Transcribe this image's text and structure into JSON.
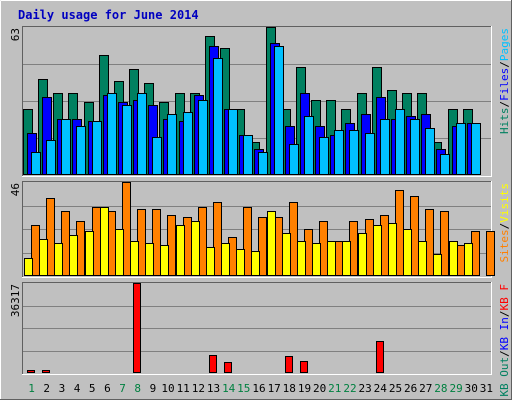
{
  "window": {
    "title": "Daily usage for June 2014"
  },
  "colors": {
    "background": "#c0c0c0",
    "frame_light": "#ffffff",
    "frame_dark": "#606060",
    "grid": "#808080",
    "title": "#0000c0",
    "hits": "#008060",
    "files": "#0000ff",
    "pages": "#00c0ff",
    "visits": "#ffff00",
    "sites": "#ff8000",
    "kb_in": "#0000ff",
    "kb_out": "#008060",
    "kb_f": "#ff0000",
    "weekend_day": "#008040",
    "weekday_day": "#000000",
    "sep": "#000000"
  },
  "chart_data": [
    {
      "type": "bar",
      "panel": "top",
      "max_label": "63",
      "ylim": [
        0,
        63
      ],
      "legend": [
        "Pages",
        "/",
        "Files",
        "/",
        "Hits"
      ],
      "legend_colors": [
        "#00c0ff",
        "#000000",
        "#0000ff",
        "#000000",
        "#008060"
      ],
      "categories": [
        "1",
        "2",
        "3",
        "4",
        "5",
        "6",
        "7",
        "8",
        "9",
        "10",
        "11",
        "12",
        "13",
        "14",
        "15",
        "16",
        "17",
        "18",
        "19",
        "20",
        "21",
        "22",
        "23",
        "24",
        "25",
        "26",
        "27",
        "28",
        "29",
        "30",
        "31"
      ],
      "series": [
        {
          "name": "Hits",
          "color": "#008060",
          "values": [
            28,
            41,
            35,
            35,
            31,
            51,
            40,
            45,
            39,
            31,
            35,
            35,
            59,
            54,
            28,
            14,
            63,
            28,
            46,
            32,
            32,
            28,
            35,
            46,
            36,
            35,
            35,
            14,
            28,
            28,
            0
          ]
        },
        {
          "name": "Files",
          "color": "#0000ff",
          "values": [
            18,
            33,
            24,
            24,
            23,
            34,
            31,
            32,
            30,
            24,
            23,
            34,
            55,
            28,
            17,
            11,
            56,
            21,
            35,
            21,
            17,
            22,
            26,
            33,
            24,
            25,
            26,
            11,
            21,
            22,
            0
          ]
        },
        {
          "name": "Pages",
          "color": "#00c0ff",
          "values": [
            10,
            15,
            24,
            21,
            23,
            35,
            30,
            35,
            16,
            26,
            27,
            32,
            50,
            28,
            17,
            10,
            55,
            13,
            25,
            16,
            19,
            19,
            18,
            24,
            28,
            24,
            20,
            9,
            22,
            22,
            0
          ]
        }
      ]
    },
    {
      "type": "bar",
      "panel": "middle",
      "max_label": "46",
      "ylim": [
        0,
        46
      ],
      "legend": [
        "Visits",
        "/",
        "Sites"
      ],
      "legend_colors": [
        "#ffff00",
        "#000000",
        "#ff8000"
      ],
      "categories": [
        "1",
        "2",
        "3",
        "4",
        "5",
        "6",
        "7",
        "8",
        "9",
        "10",
        "11",
        "12",
        "13",
        "14",
        "15",
        "16",
        "17",
        "18",
        "19",
        "20",
        "21",
        "22",
        "23",
        "24",
        "25",
        "26",
        "27",
        "28",
        "29",
        "30",
        "31"
      ],
      "series": [
        {
          "name": "Sites",
          "color": "#ff8000",
          "values": [
            25,
            38,
            32,
            27,
            34,
            32,
            46,
            33,
            33,
            30,
            29,
            34,
            36,
            19,
            34,
            29,
            29,
            36,
            23,
            27,
            17,
            27,
            28,
            30,
            42,
            39,
            33,
            32,
            15,
            22,
            22
          ]
        },
        {
          "name": "Visits",
          "color": "#ffff00",
          "values": [
            9,
            18,
            16,
            20,
            22,
            34,
            23,
            17,
            16,
            15,
            25,
            27,
            14,
            16,
            13,
            12,
            32,
            21,
            17,
            16,
            17,
            17,
            21,
            25,
            26,
            23,
            17,
            11,
            17,
            16,
            0
          ]
        }
      ]
    },
    {
      "type": "bar",
      "panel": "bottom",
      "max_label": "36317",
      "ylim": [
        0,
        36317
      ],
      "legend": [
        "KB F",
        "/",
        "KB In",
        "/",
        "KB Out"
      ],
      "legend_colors": [
        "#ff0000",
        "#000000",
        "#0000ff",
        "#000000",
        "#008060"
      ],
      "categories": [
        "1",
        "2",
        "3",
        "4",
        "5",
        "6",
        "7",
        "8",
        "9",
        "10",
        "11",
        "12",
        "13",
        "14",
        "15",
        "16",
        "17",
        "18",
        "19",
        "20",
        "21",
        "22",
        "23",
        "24",
        "25",
        "26",
        "27",
        "28",
        "29",
        "30",
        "31"
      ],
      "series": [
        {
          "name": "KB F",
          "color": "#ff0000",
          "values": [
            1100,
            1100,
            0,
            0,
            0,
            0,
            0,
            36317,
            0,
            0,
            0,
            0,
            7200,
            4300,
            0,
            0,
            0,
            7000,
            4900,
            0,
            0,
            0,
            0,
            13000,
            0,
            0,
            0,
            0,
            0,
            0,
            0
          ]
        }
      ]
    }
  ],
  "days": {
    "labels": [
      "1",
      "2",
      "3",
      "4",
      "5",
      "6",
      "7",
      "8",
      "9",
      "10",
      "11",
      "12",
      "13",
      "14",
      "15",
      "16",
      "17",
      "18",
      "19",
      "20",
      "21",
      "22",
      "23",
      "24",
      "25",
      "26",
      "27",
      "28",
      "29",
      "30",
      "31"
    ],
    "weekend": [
      1,
      7,
      8,
      14,
      15,
      21,
      22,
      28,
      29
    ]
  }
}
